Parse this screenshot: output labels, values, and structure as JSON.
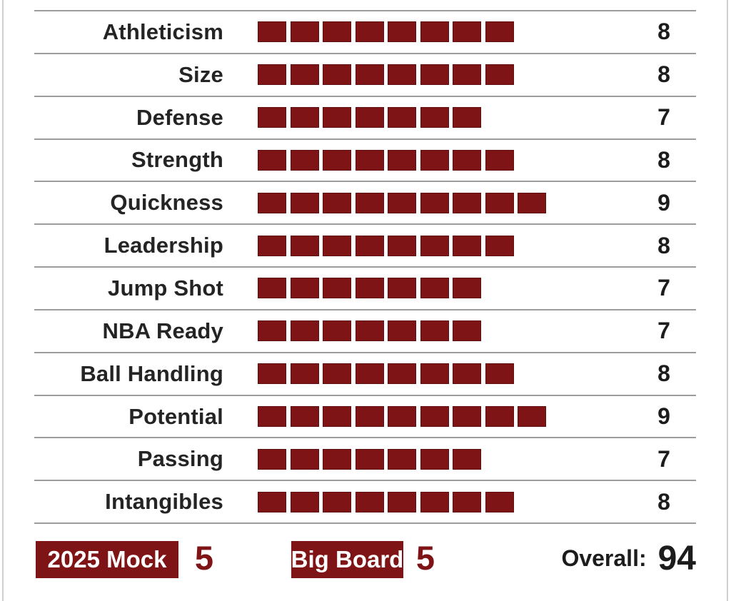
{
  "ratings": {
    "rows": [
      {
        "label": "Athleticism",
        "value": 8
      },
      {
        "label": "Size",
        "value": 8
      },
      {
        "label": "Defense",
        "value": 7
      },
      {
        "label": "Strength",
        "value": 8
      },
      {
        "label": "Quickness",
        "value": 9
      },
      {
        "label": "Leadership",
        "value": 8
      },
      {
        "label": "Jump Shot",
        "value": 7
      },
      {
        "label": "NBA Ready",
        "value": 7
      },
      {
        "label": "Ball Handling",
        "value": 8
      },
      {
        "label": "Potential",
        "value": 9
      },
      {
        "label": "Passing",
        "value": 7
      },
      {
        "label": "Intangibles",
        "value": 8
      }
    ]
  },
  "footer": {
    "mock_label": "2025 Mock",
    "mock_value": "5",
    "big_board_label": "Big Board",
    "big_board_value": "5",
    "overall_label": "Overall:",
    "overall_value": "94"
  },
  "colors": {
    "accent_red": "#7f1416",
    "separator_gray": "#9c9c9c",
    "side_border_gray": "#d0d0d0",
    "label_text": "#242424",
    "value_text": "#1c1c1c",
    "badge_text": "#ffffff"
  },
  "chart_data": {
    "type": "bar",
    "orientation": "horizontal",
    "marker_style": "unit-blocks",
    "categories": [
      "Athleticism",
      "Size",
      "Defense",
      "Strength",
      "Quickness",
      "Leadership",
      "Jump Shot",
      "NBA Ready",
      "Ball Handling",
      "Potential",
      "Passing",
      "Intangibles"
    ],
    "values": [
      8,
      8,
      7,
      8,
      9,
      8,
      7,
      7,
      8,
      9,
      7,
      8
    ],
    "ylim": [
      0,
      10
    ],
    "grid": false,
    "legend": false,
    "annotations": [
      "2025 Mock 5",
      "Big Board 5",
      "Overall: 94"
    ]
  }
}
